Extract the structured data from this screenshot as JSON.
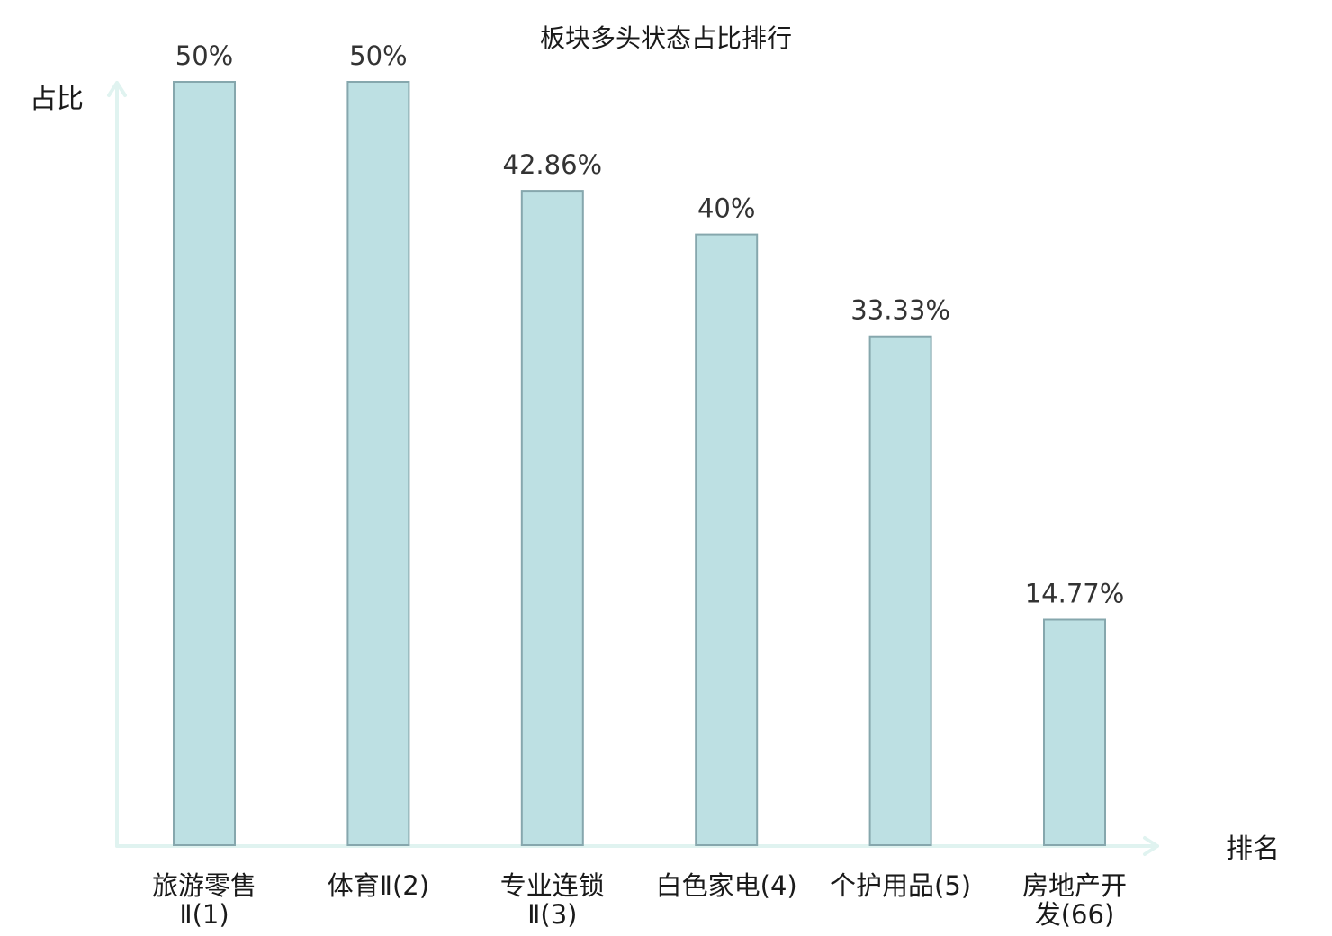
{
  "chart_data": {
    "type": "bar",
    "title": "板块多头状态占比排行",
    "ylabel": "占比",
    "xlabel": "排名",
    "ylim": [
      0,
      50
    ],
    "grid": false,
    "legend": "none",
    "categories": [
      [
        "旅游零售",
        "Ⅱ(1)"
      ],
      [
        "体育Ⅱ(2)"
      ],
      [
        "专业连锁",
        "Ⅱ(3)"
      ],
      [
        "白色家电(4)"
      ],
      [
        "个护用品(5)"
      ],
      [
        "房地产开",
        "发(66)"
      ]
    ],
    "values": [
      50,
      50,
      42.86,
      40,
      33.33,
      14.77
    ],
    "value_labels": [
      "50%",
      "50%",
      "42.86%",
      "40%",
      "33.33%",
      "14.77%"
    ],
    "highlight_index": 5
  },
  "colors": {
    "bar_fill": "#bde0e3",
    "bar_stroke": "#86a7ad",
    "axis": "#e0f3f0",
    "highlight_text": "#e00000",
    "text": "#1a1a1a",
    "value_text": "#333333"
  }
}
